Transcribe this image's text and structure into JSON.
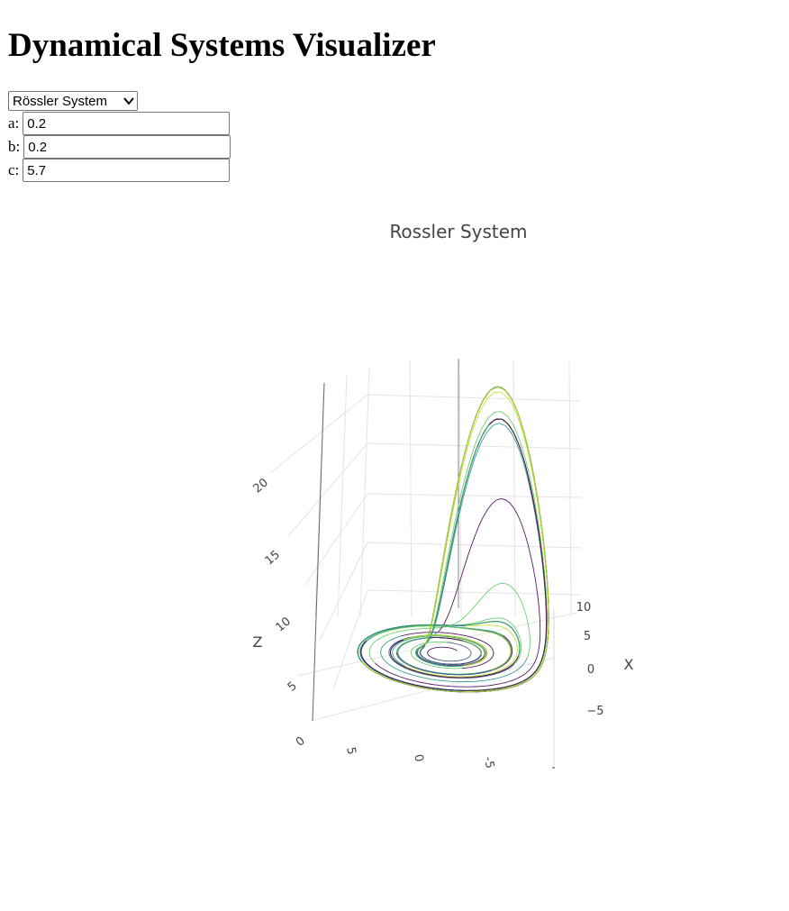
{
  "page": {
    "title": "Dynamical Systems Visualizer"
  },
  "controls": {
    "system_select": {
      "selected": "Rössler System"
    },
    "params": [
      {
        "label": "a:",
        "value": "0.2"
      },
      {
        "label": "b:",
        "value": "0.2"
      },
      {
        "label": "c:",
        "value": "5.7"
      }
    ]
  },
  "chart_data": {
    "type": "line",
    "title": "Rossler System",
    "xlabel": "X",
    "ylabel": "",
    "zlabel": "Z",
    "z_ticks": [
      "0",
      "5",
      "10",
      "15",
      "20"
    ],
    "x_ticks": [
      "10",
      "5",
      "0",
      "−5"
    ],
    "y_ticks": [
      "5",
      "0",
      "-5"
    ],
    "parameters": {
      "a": 0.2,
      "b": 0.2,
      "c": 5.7
    },
    "colorscale": [
      "#440154",
      "#3b528b",
      "#21918c",
      "#5ec962",
      "#bddf26"
    ],
    "grid": true
  }
}
